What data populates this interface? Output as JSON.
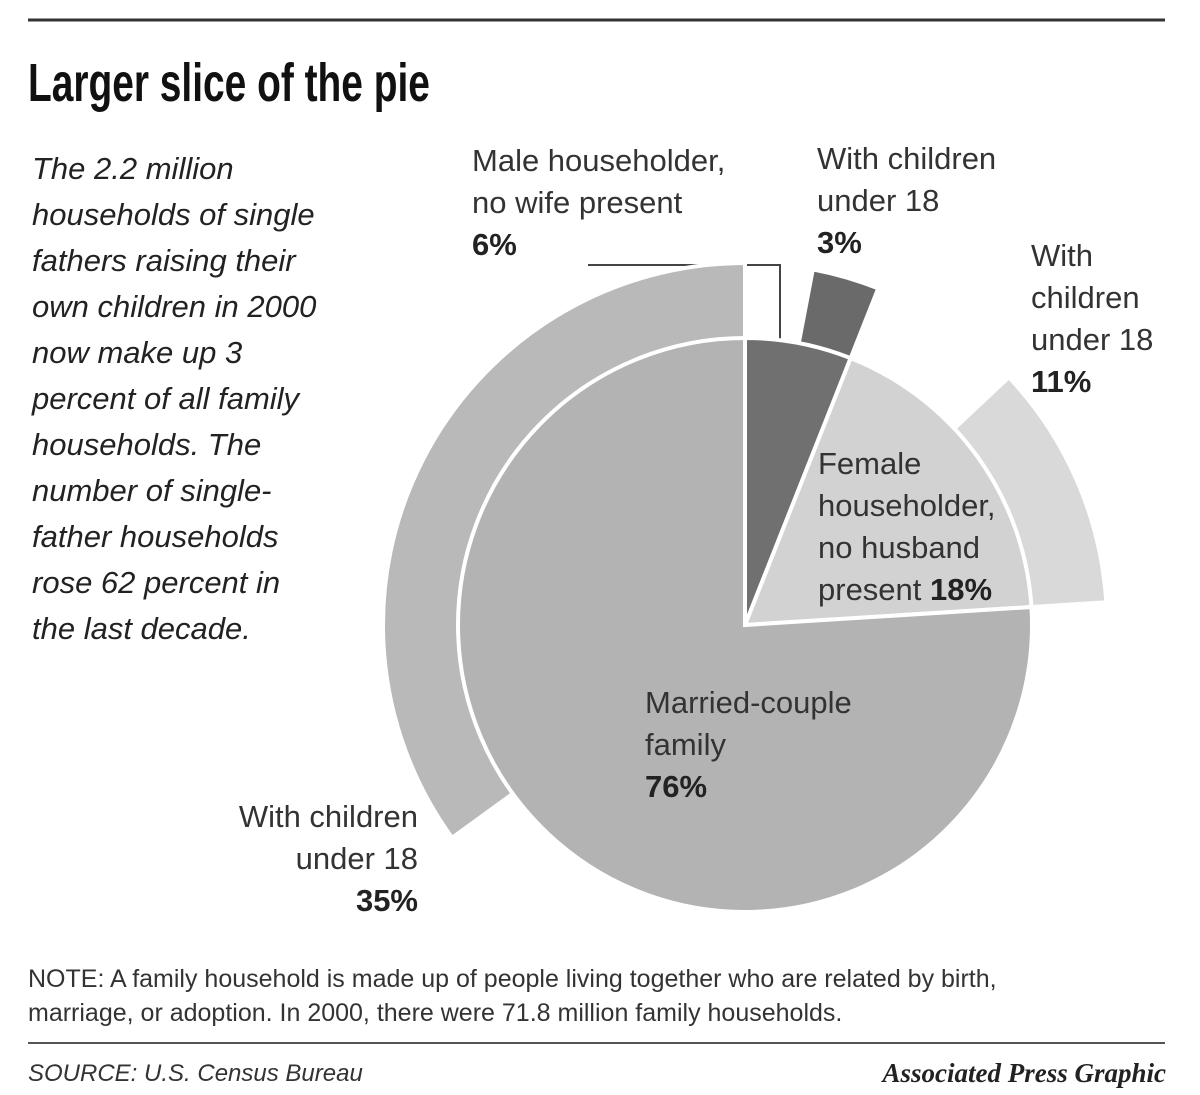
{
  "chart_data": {
    "type": "pie",
    "title": "Larger slice of the pie",
    "description": [
      "The 2.2 million",
      "households of single",
      "fathers raising their",
      "own children in 2000",
      "now make up 3",
      "percent of all family",
      "households. The",
      "number of single-",
      "father households",
      "rose 62 percent in",
      "the last decade."
    ],
    "slices": [
      {
        "label": [
          "Male householder,",
          "no wife present"
        ],
        "value": 6,
        "value_label": "6%",
        "color": "#707070",
        "sub": {
          "label": [
            "With children",
            "under 18"
          ],
          "value": 3,
          "value_label": "3%",
          "color": "#6a6a6a"
        }
      },
      {
        "label": [
          "Female",
          "householder,",
          "no husband",
          "present"
        ],
        "value": 18,
        "value_label": "18%",
        "color": "#d2d2d2",
        "sub": {
          "label": [
            "With",
            "children",
            "under 18"
          ],
          "value": 11,
          "value_label": "11%",
          "color": "#d9d9d9"
        }
      },
      {
        "label": [
          "Married-couple",
          "family"
        ],
        "value": 76,
        "value_label": "76%",
        "color": "#b3b3b3",
        "sub": {
          "label": [
            "With children",
            "under 18"
          ],
          "value": 35,
          "value_label": "35%",
          "color": "#b9b9b9"
        }
      }
    ],
    "note": [
      "NOTE: A family household is made up of people living together who are related by birth,",
      "marriage, or adoption. In 2000, there were 71.8 million family households."
    ],
    "source": "SOURCE: U.S. Census Bureau",
    "credit": "Associated Press Graphic"
  }
}
